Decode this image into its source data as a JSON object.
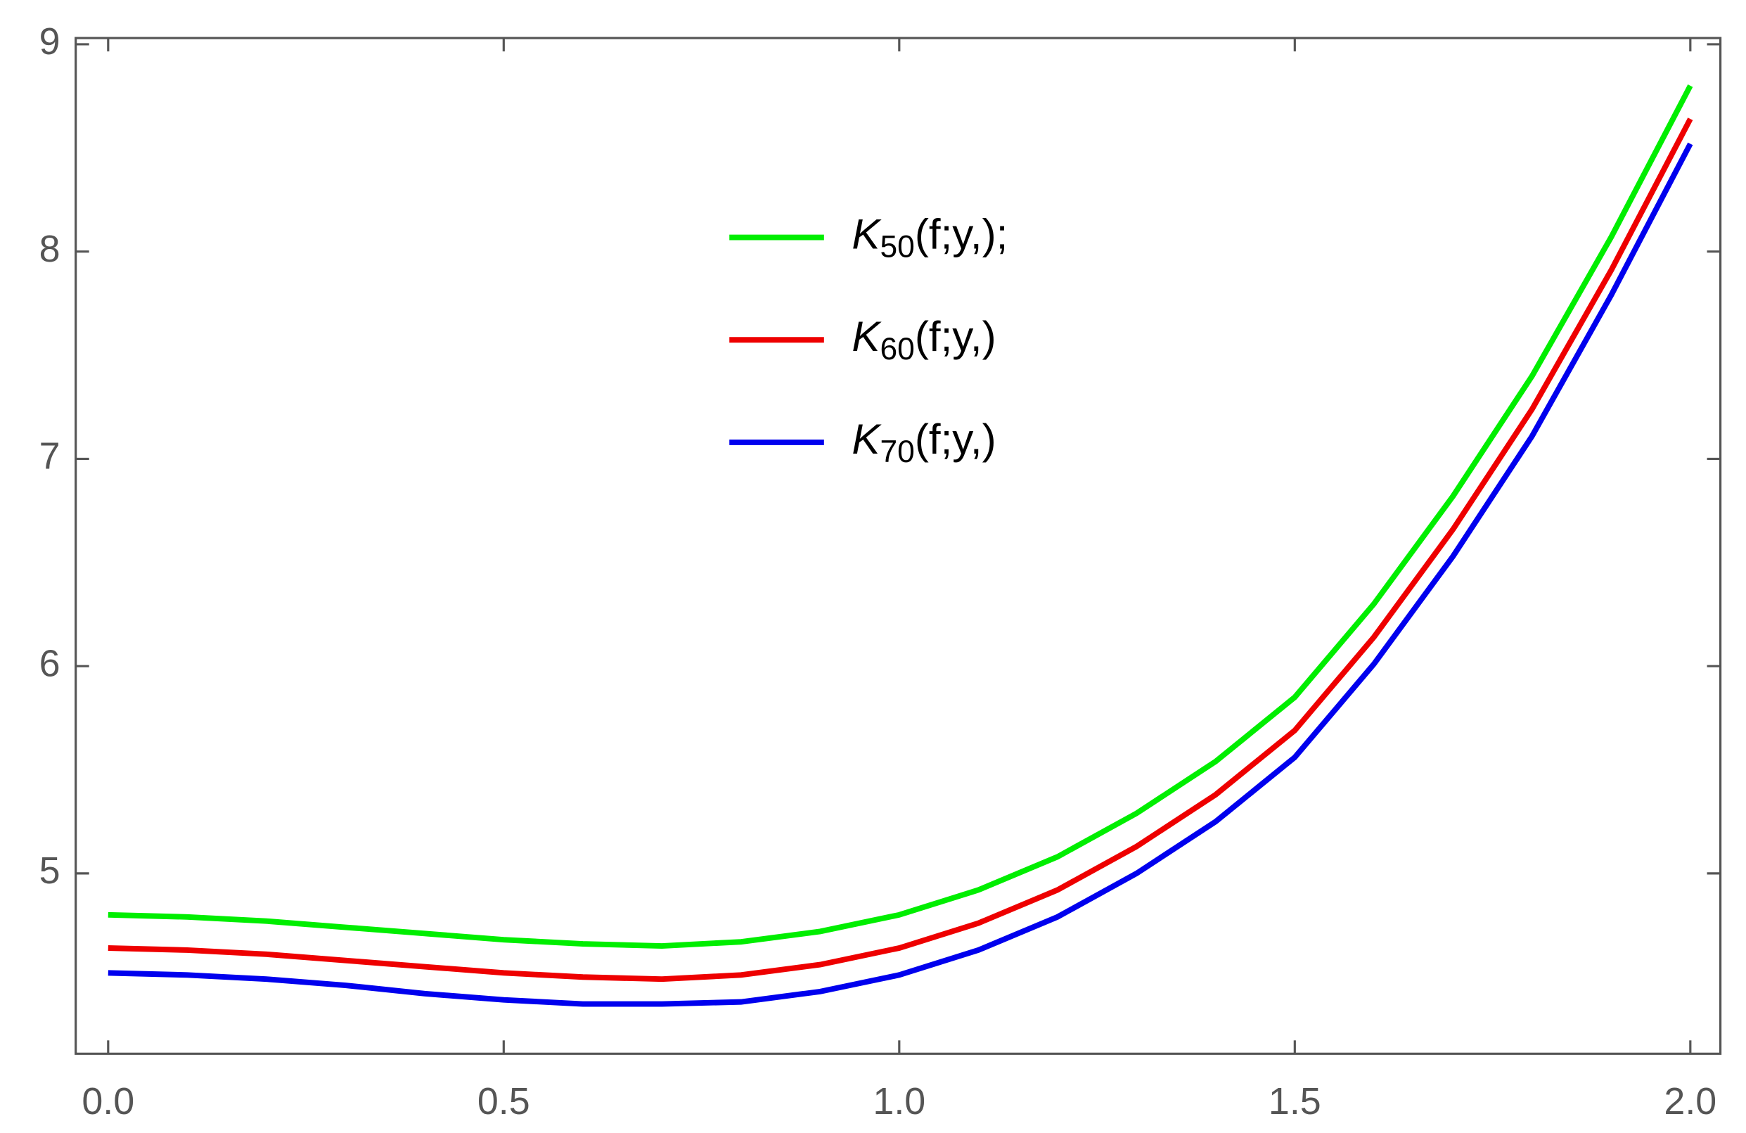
{
  "chart_data": {
    "type": "line",
    "x": [
      0,
      0.1,
      0.2,
      0.3,
      0.4,
      0.5,
      0.6,
      0.7,
      0.8,
      0.9,
      1.0,
      1.1,
      1.2,
      1.3,
      1.4,
      1.5,
      1.6,
      1.7,
      1.8,
      1.9,
      2.0
    ],
    "series": [
      {
        "name": "K50(f;y,);",
        "color": "#00ee00",
        "values": [
          4.8,
          4.79,
          4.77,
          4.74,
          4.71,
          4.68,
          4.66,
          4.65,
          4.67,
          4.72,
          4.8,
          4.92,
          5.08,
          5.29,
          5.54,
          5.85,
          6.3,
          6.82,
          7.4,
          8.07,
          8.8
        ]
      },
      {
        "name": "K60(f;y,)",
        "color": "#ee0000",
        "values": [
          4.64,
          4.63,
          4.61,
          4.58,
          4.55,
          4.52,
          4.5,
          4.49,
          4.51,
          4.56,
          4.64,
          4.76,
          4.92,
          5.13,
          5.38,
          5.69,
          6.14,
          6.66,
          7.24,
          7.91,
          8.64
        ]
      },
      {
        "name": "K70(f;y,)",
        "color": "#0000ee",
        "values": [
          4.52,
          4.51,
          4.49,
          4.46,
          4.42,
          4.39,
          4.37,
          4.37,
          4.38,
          4.43,
          4.51,
          4.63,
          4.79,
          5.0,
          5.25,
          5.56,
          6.01,
          6.53,
          7.11,
          7.79,
          8.52
        ]
      }
    ],
    "xlim": [
      -0.041,
      2.038
    ],
    "ylim": [
      4.13,
      9.03
    ],
    "xticks": [
      {
        "value": 0,
        "label": "0.0"
      },
      {
        "value": 0.5,
        "label": "0.5"
      },
      {
        "value": 1,
        "label": "1.0"
      },
      {
        "value": 1.5,
        "label": "1.5"
      },
      {
        "value": 2,
        "label": "2.0"
      }
    ],
    "yticks": [
      5,
      6,
      7,
      8,
      9
    ]
  }
}
